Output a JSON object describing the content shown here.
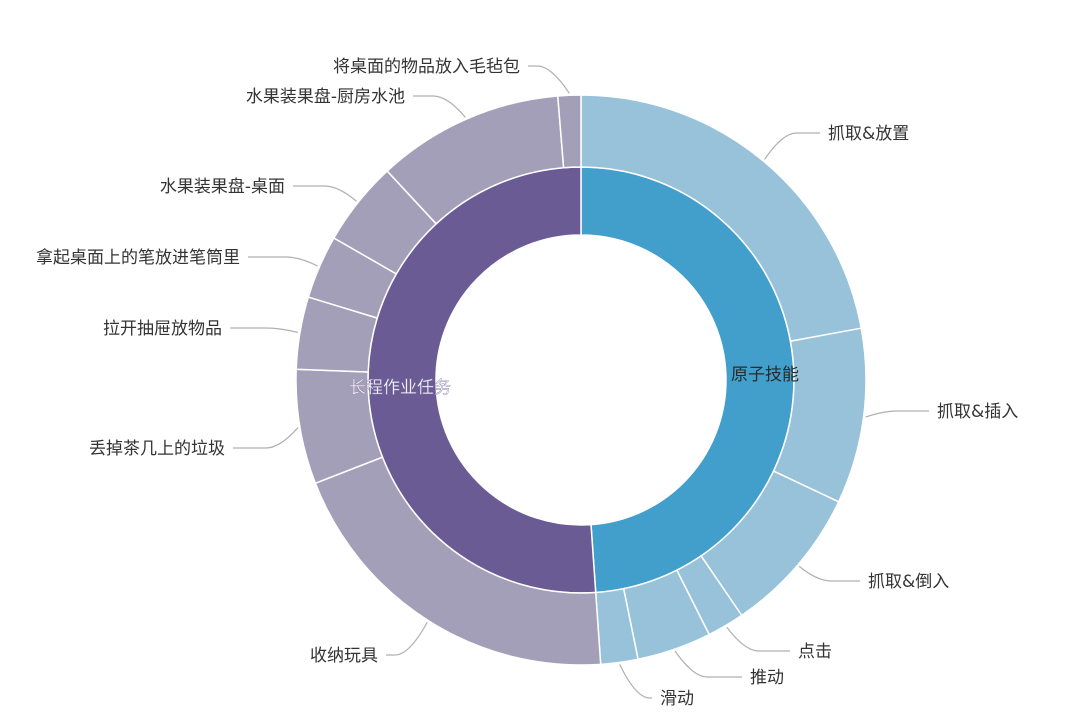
{
  "chart_data": {
    "type": "sunburst",
    "title": "",
    "unit_note": "values are estimated shares of the full circle, in percent",
    "colors": {
      "inner_atomic": "#429fcb",
      "outer_atomic": "#97c2da",
      "inner_longrange": "#6b5b95",
      "outer_longrange": "#a49fb8",
      "separator": "#ffffff",
      "leader": "#b0b0b0",
      "label": "#333333"
    },
    "categories": [
      {
        "name": "原子技能",
        "value": 48.9,
        "children": [
          {
            "name": "抓取&放置",
            "value": 22.0
          },
          {
            "name": "抓取&插入",
            "value": 9.9
          },
          {
            "name": "抓取&倒入",
            "value": 8.4
          },
          {
            "name": "点击",
            "value": 2.1
          },
          {
            "name": "推动",
            "value": 4.2
          },
          {
            "name": "滑动",
            "value": 2.1
          }
        ]
      },
      {
        "name": "长程作业任务",
        "value": 51.1,
        "children": [
          {
            "name": "收纳玩具",
            "value": 20.2
          },
          {
            "name": "丢掉茶几上的垃圾",
            "value": 6.5
          },
          {
            "name": "拉开抽屉放物品",
            "value": 4.1
          },
          {
            "name": "拿起桌面上的笔放进笔筒里",
            "value": 3.6
          },
          {
            "name": "水果装果盘-桌面",
            "value": 4.8
          },
          {
            "name": "水果装果盘-厨房水池",
            "value": 10.6
          },
          {
            "name": "将桌面的物品放入毛毡包",
            "value": 1.3
          }
        ]
      }
    ]
  }
}
